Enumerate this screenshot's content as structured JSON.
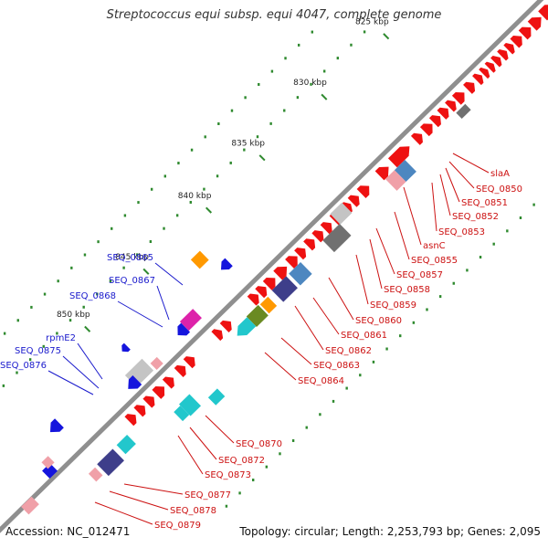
{
  "title": "Streptococcus equi subsp. equi 4047, complete genome",
  "footer": {
    "accession": "Accession: NC_012471",
    "topology": "Topology: circular; Length: 2,253,793 bp; Genes: 2,095"
  },
  "colors": {
    "backbone": "#8f8f8f",
    "plus_label": "#1a1acc",
    "minus_label": "#cc1111",
    "tick_label": "#222222",
    "tick_mark": "#2f8a2f",
    "dots": "#2f8a2f"
  },
  "scale": {
    "unit": "kbp",
    "ticks": [
      {
        "label": "825 kbp"
      },
      {
        "label": "830 kbp"
      },
      {
        "label": "835 kbp"
      },
      {
        "label": "840 kbp"
      },
      {
        "label": "845 kbp"
      },
      {
        "label": "850 kbp"
      }
    ]
  },
  "genes_plus_labeled": [
    {
      "label": "SEQ_0865"
    },
    {
      "label": "SEQ_0867"
    },
    {
      "label": "SEQ_0868"
    },
    {
      "label": "rpmE2"
    },
    {
      "label": "SEQ_0875"
    },
    {
      "label": "SEQ_0876"
    }
  ],
  "genes_minus_labeled": [
    {
      "label": "slaA"
    },
    {
      "label": "SEQ_0850"
    },
    {
      "label": "SEQ_0851"
    },
    {
      "label": "SEQ_0852"
    },
    {
      "label": "SEQ_0853"
    },
    {
      "label": "asnC"
    },
    {
      "label": "SEQ_0855"
    },
    {
      "label": "SEQ_0857"
    },
    {
      "label": "SEQ_0858"
    },
    {
      "label": "SEQ_0859"
    },
    {
      "label": "SEQ_0860"
    },
    {
      "label": "SEQ_0861"
    },
    {
      "label": "SEQ_0862"
    },
    {
      "label": "SEQ_0863"
    },
    {
      "label": "SEQ_0864"
    },
    {
      "label": "SEQ_0870"
    },
    {
      "label": "SEQ_0872"
    },
    {
      "label": "SEQ_0873"
    },
    {
      "label": "SEQ_0877"
    },
    {
      "label": "SEQ_0878"
    },
    {
      "label": "SEQ_0879"
    }
  ]
}
